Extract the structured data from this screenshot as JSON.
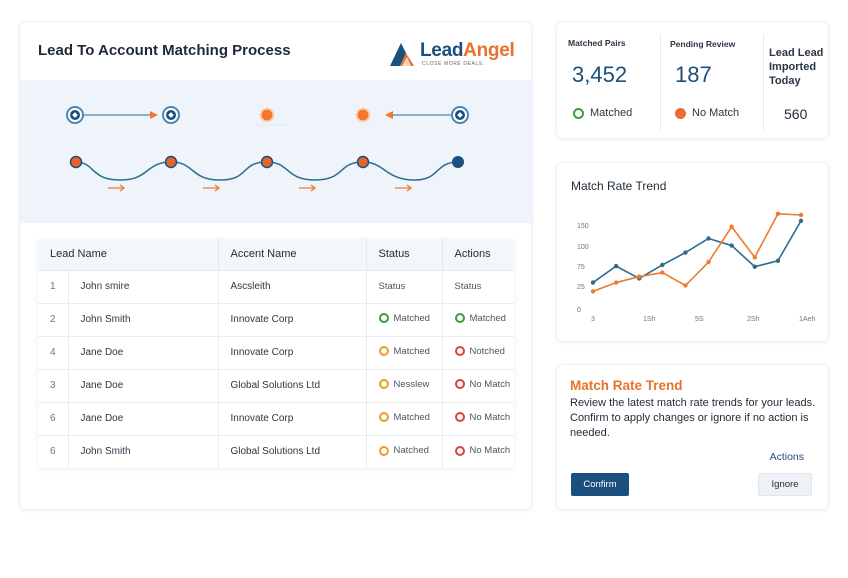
{
  "main": {
    "title": "Lead To Account Matching Process",
    "logo": {
      "brand_primary": "Lead",
      "brand_accent": "Angel",
      "tagline": "CLOSE MORE DEALS."
    }
  },
  "table": {
    "headers": [
      "Lead Name",
      "Accent Name",
      "Status",
      "Actions"
    ],
    "rows": [
      {
        "num": "1",
        "lead": "John smire",
        "account": "Ascsleith",
        "status": {
          "label": "Status",
          "color": "none"
        },
        "action": {
          "label": "Status",
          "color": "none"
        }
      },
      {
        "num": "2",
        "lead": "John Smith",
        "account": "Innovate Corp",
        "status": {
          "label": "Matched",
          "color": "green"
        },
        "action": {
          "label": "Matched",
          "color": "green"
        }
      },
      {
        "num": "4",
        "lead": "Jane Doe",
        "account": "Innovate Corp",
        "status": {
          "label": "Matched",
          "color": "orange"
        },
        "action": {
          "label": "Notched",
          "color": "red"
        }
      },
      {
        "num": "3",
        "lead": "Jane Doe",
        "account": "Global Solutions Ltd",
        "status": {
          "label": "Nesslew",
          "color": "orange"
        },
        "action": {
          "label": "No Match",
          "color": "red"
        }
      },
      {
        "num": "6",
        "lead": "Jane Doe",
        "account": "Innovate Corp",
        "status": {
          "label": "Matched",
          "color": "orange"
        },
        "action": {
          "label": "No Match",
          "color": "red"
        }
      },
      {
        "num": "6",
        "lead": "John Smith",
        "account": "Global Solutions Ltd",
        "status": {
          "label": "Natched",
          "color": "orange"
        },
        "action": {
          "label": "No Match",
          "color": "red"
        }
      }
    ]
  },
  "kpi": {
    "matched": {
      "label": "Matched Pairs",
      "value": "3,452",
      "legend": "Matched",
      "icon": "green-ring-icon"
    },
    "pending": {
      "label": "Pending Review",
      "value": "187",
      "legend": "No Match",
      "icon": "orange-dot-icon"
    },
    "imported": {
      "label": "Lead Lead Imported Today",
      "value": "560"
    }
  },
  "chart": {
    "title": "Match Rate Trend"
  },
  "chart_data": {
    "type": "line",
    "title": "Match Rate Trend",
    "x_ticks": [
      "3",
      "1Sh",
      "5S",
      "2Sh",
      "1Aeh"
    ],
    "y_ticks": [
      "0",
      "25",
      "75",
      "100",
      "150"
    ],
    "ylim": [
      0,
      160
    ],
    "x": [
      0,
      1,
      2,
      3,
      4,
      5,
      6,
      7,
      8,
      9
    ],
    "series": [
      {
        "color": "#2f6b8f",
        "values": [
          45,
          73,
          52,
          75,
          96,
          120,
          108,
          72,
          82,
          150
        ]
      },
      {
        "color": "#f07a2a",
        "values": [
          30,
          45,
          55,
          62,
          40,
          80,
          140,
          88,
          162,
          160
        ]
      }
    ],
    "grid": false,
    "legend": "none"
  },
  "action_card": {
    "title": "Match Rate Trend",
    "description": "Review the latest match rate trends for your leads. Confirm to apply changes or ignore if no action is needed.",
    "actions_label": "Actions",
    "confirm_label": "Confirm",
    "ignore_label": "Ignore"
  },
  "colors": {
    "primary": "#1c4e7e",
    "accent": "#e8722c",
    "green": "#3a9d3e",
    "red": "#e0413f",
    "orange": "#f29a2e"
  }
}
